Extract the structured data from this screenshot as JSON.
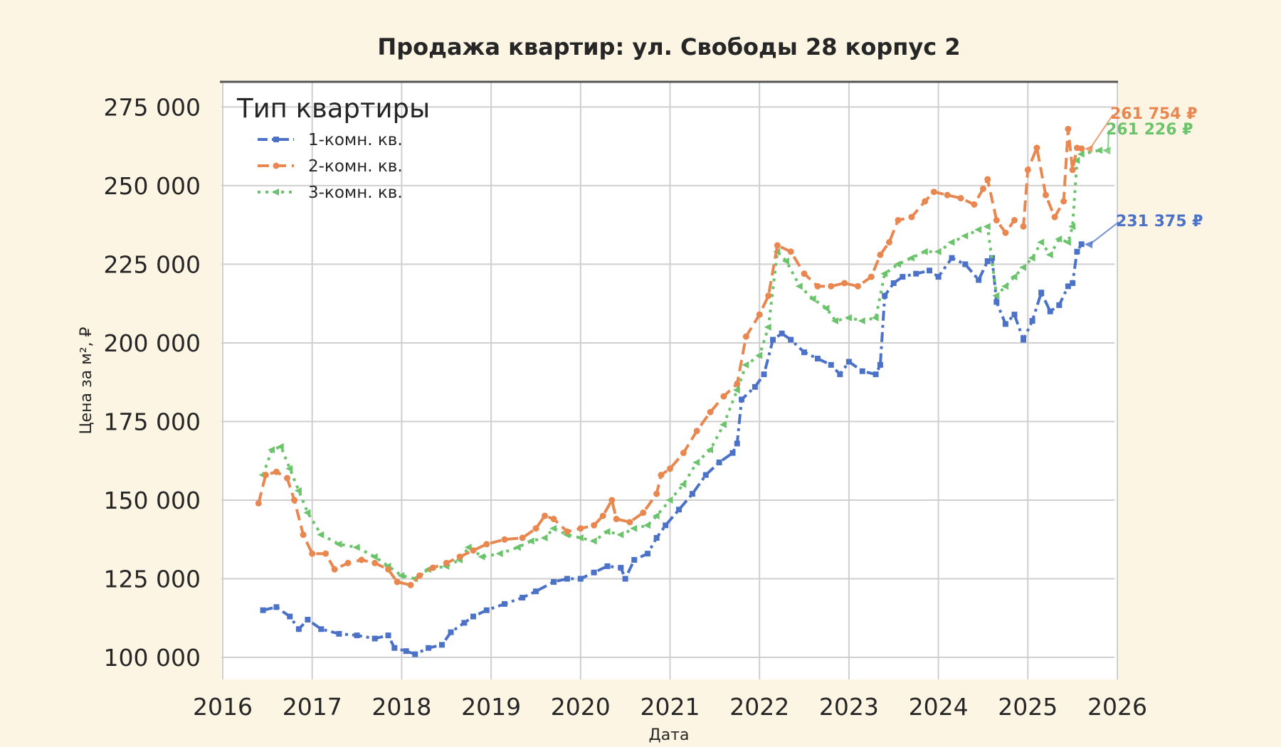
{
  "chart_data": {
    "type": "line",
    "title": "Продажа квартир: ул. Свободы 28 корпус 2",
    "xlabel": "Дата",
    "ylabel": "Цена за м², ₽",
    "x_range": [
      2016,
      2026
    ],
    "ylim": [
      93000,
      283000
    ],
    "x_ticks": [
      "2016",
      "2017",
      "2018",
      "2019",
      "2020",
      "2021",
      "2022",
      "2023",
      "2024",
      "2025",
      "2026"
    ],
    "y_ticks": [
      {
        "value": 100000,
        "label": "100 000"
      },
      {
        "value": 125000,
        "label": "125 000"
      },
      {
        "value": 150000,
        "label": "150 000"
      },
      {
        "value": 175000,
        "label": "175 000"
      },
      {
        "value": 200000,
        "label": "200 000"
      },
      {
        "value": 225000,
        "label": "225 000"
      },
      {
        "value": 250000,
        "label": "250 000"
      },
      {
        "value": 275000,
        "label": "275 000"
      }
    ],
    "grid": true,
    "legend": {
      "title": "Тип квартиры",
      "placement": "top-left"
    },
    "series": [
      {
        "name": "1-комн. кв.",
        "color": "#4c72c8",
        "style": "dashdot",
        "marker": "square",
        "end_label": "231 375 ₽",
        "points": [
          [
            2016.45,
            115000
          ],
          [
            2016.6,
            116000
          ],
          [
            2016.75,
            113000
          ],
          [
            2016.85,
            109000
          ],
          [
            2016.95,
            112000
          ],
          [
            2017.1,
            109000
          ],
          [
            2017.3,
            107500
          ],
          [
            2017.5,
            107000
          ],
          [
            2017.7,
            106000
          ],
          [
            2017.85,
            107000
          ],
          [
            2017.92,
            103000
          ],
          [
            2018.05,
            102000
          ],
          [
            2018.15,
            101000
          ],
          [
            2018.3,
            103000
          ],
          [
            2018.45,
            104000
          ],
          [
            2018.55,
            108000
          ],
          [
            2018.7,
            111000
          ],
          [
            2018.8,
            113000
          ],
          [
            2018.95,
            115000
          ],
          [
            2019.15,
            117000
          ],
          [
            2019.35,
            119000
          ],
          [
            2019.5,
            121000
          ],
          [
            2019.7,
            124000
          ],
          [
            2019.85,
            125000
          ],
          [
            2020.0,
            125000
          ],
          [
            2020.15,
            127000
          ],
          [
            2020.3,
            129000
          ],
          [
            2020.45,
            128500
          ],
          [
            2020.5,
            125000
          ],
          [
            2020.6,
            131000
          ],
          [
            2020.75,
            133000
          ],
          [
            2020.85,
            138000
          ],
          [
            2020.95,
            142000
          ],
          [
            2021.1,
            147000
          ],
          [
            2021.25,
            152000
          ],
          [
            2021.4,
            158000
          ],
          [
            2021.55,
            162000
          ],
          [
            2021.7,
            165000
          ],
          [
            2021.75,
            168000
          ],
          [
            2021.8,
            182000
          ],
          [
            2021.95,
            186000
          ],
          [
            2022.05,
            190000
          ],
          [
            2022.15,
            201000
          ],
          [
            2022.25,
            203000
          ],
          [
            2022.35,
            201000
          ],
          [
            2022.5,
            197000
          ],
          [
            2022.65,
            195000
          ],
          [
            2022.8,
            193000
          ],
          [
            2022.9,
            190000
          ],
          [
            2023.0,
            194000
          ],
          [
            2023.15,
            191000
          ],
          [
            2023.3,
            190000
          ],
          [
            2023.35,
            193000
          ],
          [
            2023.4,
            215000
          ],
          [
            2023.5,
            219000
          ],
          [
            2023.6,
            221000
          ],
          [
            2023.75,
            222000
          ],
          [
            2023.9,
            223000
          ],
          [
            2024.0,
            221000
          ],
          [
            2024.15,
            227000
          ],
          [
            2024.3,
            225000
          ],
          [
            2024.45,
            220000
          ],
          [
            2024.55,
            226000
          ],
          [
            2024.6,
            227000
          ],
          [
            2024.65,
            213000
          ],
          [
            2024.75,
            206000
          ],
          [
            2024.85,
            209000
          ],
          [
            2024.95,
            201000
          ],
          [
            2025.05,
            207000
          ],
          [
            2025.15,
            216000
          ],
          [
            2025.25,
            210000
          ],
          [
            2025.35,
            212000
          ],
          [
            2025.45,
            218000
          ],
          [
            2025.5,
            219000
          ],
          [
            2025.55,
            229000
          ],
          [
            2025.6,
            231375
          ]
        ]
      },
      {
        "name": "2-комн. кв.",
        "color": "#e8874f",
        "style": "dashed",
        "marker": "circle",
        "end_label": "261 754 ₽",
        "points": [
          [
            2016.4,
            149000
          ],
          [
            2016.48,
            158000
          ],
          [
            2016.6,
            159000
          ],
          [
            2016.72,
            157000
          ],
          [
            2016.8,
            150000
          ],
          [
            2016.9,
            139000
          ],
          [
            2017.0,
            133000
          ],
          [
            2017.15,
            133000
          ],
          [
            2017.25,
            128000
          ],
          [
            2017.4,
            130000
          ],
          [
            2017.55,
            131000
          ],
          [
            2017.7,
            130000
          ],
          [
            2017.85,
            128000
          ],
          [
            2017.95,
            124000
          ],
          [
            2018.1,
            123000
          ],
          [
            2018.2,
            126000
          ],
          [
            2018.35,
            128500
          ],
          [
            2018.5,
            130000
          ],
          [
            2018.65,
            132000
          ],
          [
            2018.8,
            134000
          ],
          [
            2018.95,
            136000
          ],
          [
            2019.15,
            137500
          ],
          [
            2019.35,
            138000
          ],
          [
            2019.5,
            141000
          ],
          [
            2019.6,
            145000
          ],
          [
            2019.7,
            144000
          ],
          [
            2019.85,
            140000
          ],
          [
            2020.0,
            141000
          ],
          [
            2020.15,
            142000
          ],
          [
            2020.25,
            145000
          ],
          [
            2020.35,
            150000
          ],
          [
            2020.4,
            144000
          ],
          [
            2020.55,
            143000
          ],
          [
            2020.7,
            146000
          ],
          [
            2020.85,
            152000
          ],
          [
            2020.9,
            158000
          ],
          [
            2021.0,
            160000
          ],
          [
            2021.15,
            165000
          ],
          [
            2021.3,
            172000
          ],
          [
            2021.45,
            178000
          ],
          [
            2021.6,
            183000
          ],
          [
            2021.75,
            187000
          ],
          [
            2021.85,
            202000
          ],
          [
            2022.0,
            209000
          ],
          [
            2022.1,
            215000
          ],
          [
            2022.2,
            231000
          ],
          [
            2022.35,
            229000
          ],
          [
            2022.5,
            222000
          ],
          [
            2022.65,
            218000
          ],
          [
            2022.8,
            218000
          ],
          [
            2022.95,
            219000
          ],
          [
            2023.1,
            218000
          ],
          [
            2023.25,
            221000
          ],
          [
            2023.35,
            228000
          ],
          [
            2023.45,
            232000
          ],
          [
            2023.55,
            239000
          ],
          [
            2023.7,
            240000
          ],
          [
            2023.85,
            245000
          ],
          [
            2023.95,
            248000
          ],
          [
            2024.1,
            247000
          ],
          [
            2024.25,
            246000
          ],
          [
            2024.4,
            244000
          ],
          [
            2024.5,
            249000
          ],
          [
            2024.55,
            252000
          ],
          [
            2024.65,
            239000
          ],
          [
            2024.75,
            235000
          ],
          [
            2024.85,
            239000
          ],
          [
            2024.95,
            237000
          ],
          [
            2025.0,
            255000
          ],
          [
            2025.1,
            262000
          ],
          [
            2025.2,
            247000
          ],
          [
            2025.3,
            240000
          ],
          [
            2025.4,
            245000
          ],
          [
            2025.45,
            268000
          ],
          [
            2025.5,
            255000
          ],
          [
            2025.55,
            262000
          ],
          [
            2025.6,
            261754
          ]
        ]
      },
      {
        "name": "3-комн. кв.",
        "color": "#6bc46b",
        "style": "dotted",
        "marker": "triangle-left",
        "end_label": "261 226 ₽",
        "points": [
          [
            2016.45,
            158000
          ],
          [
            2016.55,
            166000
          ],
          [
            2016.65,
            167000
          ],
          [
            2016.75,
            160000
          ],
          [
            2016.85,
            153000
          ],
          [
            2016.95,
            146000
          ],
          [
            2017.1,
            139000
          ],
          [
            2017.3,
            136000
          ],
          [
            2017.5,
            135000
          ],
          [
            2017.7,
            132000
          ],
          [
            2017.85,
            129000
          ],
          [
            2018.0,
            126000
          ],
          [
            2018.15,
            125000
          ],
          [
            2018.3,
            128000
          ],
          [
            2018.5,
            129000
          ],
          [
            2018.65,
            131000
          ],
          [
            2018.75,
            135000
          ],
          [
            2018.9,
            132000
          ],
          [
            2019.1,
            133000
          ],
          [
            2019.3,
            135000
          ],
          [
            2019.45,
            137000
          ],
          [
            2019.6,
            138000
          ],
          [
            2019.7,
            141000
          ],
          [
            2019.85,
            139000
          ],
          [
            2020.0,
            138000
          ],
          [
            2020.15,
            137000
          ],
          [
            2020.3,
            140000
          ],
          [
            2020.45,
            139000
          ],
          [
            2020.6,
            141000
          ],
          [
            2020.75,
            142000
          ],
          [
            2020.85,
            145000
          ],
          [
            2021.0,
            150000
          ],
          [
            2021.15,
            155000
          ],
          [
            2021.3,
            162000
          ],
          [
            2021.45,
            166000
          ],
          [
            2021.6,
            174000
          ],
          [
            2021.75,
            185000
          ],
          [
            2021.85,
            193000
          ],
          [
            2022.0,
            196000
          ],
          [
            2022.1,
            205000
          ],
          [
            2022.2,
            229000
          ],
          [
            2022.3,
            226000
          ],
          [
            2022.45,
            218000
          ],
          [
            2022.6,
            214000
          ],
          [
            2022.75,
            211000
          ],
          [
            2022.85,
            207000
          ],
          [
            2023.0,
            208000
          ],
          [
            2023.15,
            207000
          ],
          [
            2023.3,
            208000
          ],
          [
            2023.4,
            222000
          ],
          [
            2023.55,
            225000
          ],
          [
            2023.7,
            227000
          ],
          [
            2023.85,
            229000
          ],
          [
            2024.0,
            229000
          ],
          [
            2024.15,
            232000
          ],
          [
            2024.3,
            234000
          ],
          [
            2024.45,
            236000
          ],
          [
            2024.55,
            237000
          ],
          [
            2024.65,
            215000
          ],
          [
            2024.75,
            218000
          ],
          [
            2024.85,
            221000
          ],
          [
            2024.95,
            224000
          ],
          [
            2025.05,
            227000
          ],
          [
            2025.15,
            232000
          ],
          [
            2025.25,
            228000
          ],
          [
            2025.35,
            233000
          ],
          [
            2025.45,
            232000
          ],
          [
            2025.5,
            237000
          ],
          [
            2025.55,
            258000
          ],
          [
            2025.6,
            260000
          ],
          [
            2025.8,
            261226
          ]
        ]
      }
    ]
  }
}
